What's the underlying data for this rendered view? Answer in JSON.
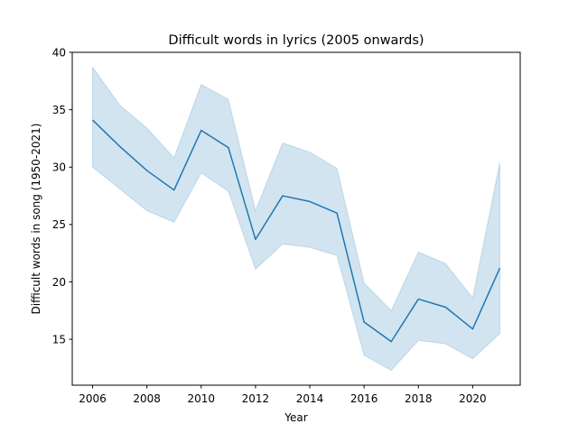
{
  "chart_data": {
    "type": "line",
    "title": "Difficult words in lyrics (2005 onwards)",
    "xlabel": "Year",
    "ylabel": "Difficult words in song (1950-2021)",
    "xlim": [
      2005.25,
      2021.75
    ],
    "ylim": [
      11.0,
      40.0
    ],
    "xticks": [
      2006,
      2008,
      2010,
      2012,
      2014,
      2016,
      2018,
      2020
    ],
    "yticks": [
      15,
      20,
      25,
      30,
      35,
      40
    ],
    "grid": false,
    "legend": "none",
    "series": [
      {
        "color": "#1f77b4",
        "band_color": "#1f77b4",
        "x": [
          2006,
          2007,
          2008,
          2009,
          2010,
          2011,
          2012,
          2013,
          2014,
          2015,
          2016,
          2017,
          2018,
          2019,
          2020,
          2021
        ],
        "y": [
          34.1,
          31.8,
          29.7,
          28.0,
          33.2,
          31.7,
          23.7,
          27.5,
          27.0,
          26.0,
          16.5,
          14.8,
          18.5,
          17.8,
          15.9,
          21.2
        ],
        "ci_upper": [
          38.7,
          35.4,
          33.4,
          30.8,
          37.2,
          35.9,
          26.2,
          32.1,
          31.3,
          29.9,
          19.9,
          17.5,
          22.6,
          21.6,
          18.6,
          30.4
        ],
        "ci_lower": [
          30.0,
          28.1,
          26.2,
          25.2,
          29.5,
          27.9,
          21.1,
          23.3,
          23.0,
          22.3,
          13.6,
          12.3,
          14.9,
          14.6,
          13.3,
          15.5
        ]
      }
    ]
  }
}
